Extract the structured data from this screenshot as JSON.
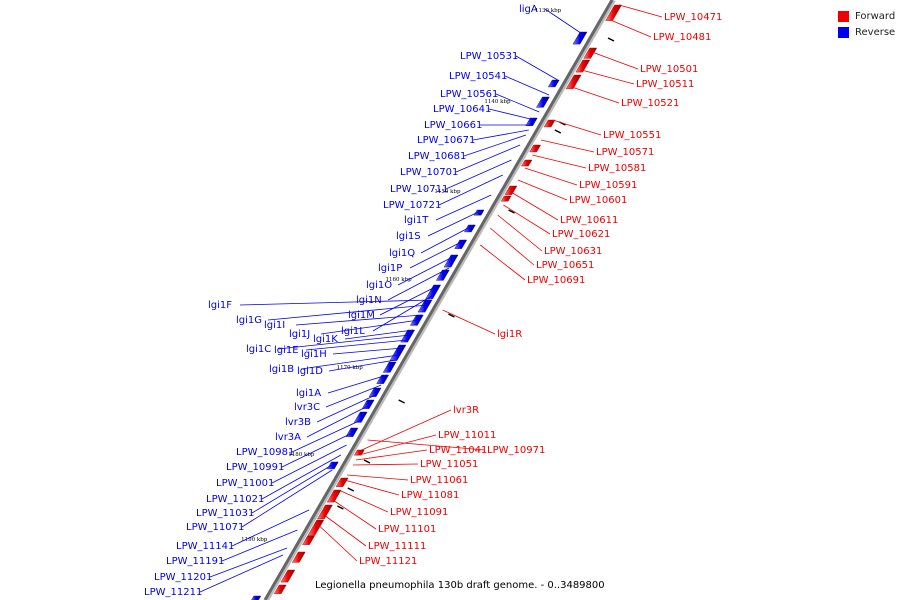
{
  "legend": {
    "forward": {
      "label": "Forward",
      "color": "#ee0000"
    },
    "reverse": {
      "label": "Reverse",
      "color": "#0000ee"
    }
  },
  "caption": "Legionella pneumophila 130b draft genome. - 0..3489800",
  "ticks": [
    "1130 kbp",
    "1140 kbp",
    "1150 kbp",
    "1160 kbp",
    "1170 kbp",
    "1180 kbp",
    "1190 kbp"
  ],
  "genes": [
    {
      "name": "ligA",
      "strand": "reverse"
    },
    {
      "name": "LPW_10471",
      "strand": "forward"
    },
    {
      "name": "LPW_10481",
      "strand": "forward"
    },
    {
      "name": "LPW_10501",
      "strand": "forward"
    },
    {
      "name": "LPW_10511",
      "strand": "forward"
    },
    {
      "name": "LPW_10521",
      "strand": "forward"
    },
    {
      "name": "LPW_10531",
      "strand": "reverse"
    },
    {
      "name": "LPW_10541",
      "strand": "reverse"
    },
    {
      "name": "LPW_10561",
      "strand": "reverse"
    },
    {
      "name": "LPW_10641",
      "strand": "reverse"
    },
    {
      "name": "LPW_10551",
      "strand": "forward"
    },
    {
      "name": "LPW_10661",
      "strand": "reverse"
    },
    {
      "name": "LPW_10671",
      "strand": "reverse"
    },
    {
      "name": "LPW_10571",
      "strand": "forward"
    },
    {
      "name": "LPW_10681",
      "strand": "reverse"
    },
    {
      "name": "LPW_10581",
      "strand": "forward"
    },
    {
      "name": "LPW_10701",
      "strand": "reverse"
    },
    {
      "name": "LPW_10591",
      "strand": "forward"
    },
    {
      "name": "LPW_10711",
      "strand": "reverse"
    },
    {
      "name": "LPW_10601",
      "strand": "forward"
    },
    {
      "name": "LPW_10721",
      "strand": "reverse"
    },
    {
      "name": "LPW_10611",
      "strand": "forward"
    },
    {
      "name": "lgi1T",
      "strand": "reverse"
    },
    {
      "name": "LPW_10621",
      "strand": "forward"
    },
    {
      "name": "lgi1S",
      "strand": "reverse"
    },
    {
      "name": "LPW_10631",
      "strand": "forward"
    },
    {
      "name": "lgi1Q",
      "strand": "reverse"
    },
    {
      "name": "LPW_10651",
      "strand": "forward"
    },
    {
      "name": "lgi1P",
      "strand": "reverse"
    },
    {
      "name": "LPW_10691",
      "strand": "forward"
    },
    {
      "name": "lgi1O",
      "strand": "reverse"
    },
    {
      "name": "lgi1N",
      "strand": "reverse"
    },
    {
      "name": "lgi1F",
      "strand": "reverse"
    },
    {
      "name": "lgi1M",
      "strand": "reverse"
    },
    {
      "name": "lgi1G",
      "strand": "reverse"
    },
    {
      "name": "lgi1I",
      "strand": "reverse"
    },
    {
      "name": "lgi1R",
      "strand": "forward"
    },
    {
      "name": "lgi1L",
      "strand": "reverse"
    },
    {
      "name": "lgi1J",
      "strand": "reverse"
    },
    {
      "name": "lgi1K",
      "strand": "reverse"
    },
    {
      "name": "lgi1C",
      "strand": "reverse"
    },
    {
      "name": "lgi1E",
      "strand": "reverse"
    },
    {
      "name": "lgi1H",
      "strand": "reverse"
    },
    {
      "name": "lgi1B",
      "strand": "reverse"
    },
    {
      "name": "lgi1D",
      "strand": "reverse"
    },
    {
      "name": "lgi1A",
      "strand": "reverse"
    },
    {
      "name": "lvr3C",
      "strand": "reverse"
    },
    {
      "name": "lvr3R",
      "strand": "forward"
    },
    {
      "name": "lvr3B",
      "strand": "reverse"
    },
    {
      "name": "LPW_11011",
      "strand": "forward"
    },
    {
      "name": "lvr3A",
      "strand": "reverse"
    },
    {
      "name": "LPW_11041",
      "strand": "forward"
    },
    {
      "name": "LPW_10971",
      "strand": "forward"
    },
    {
      "name": "LPW_10981",
      "strand": "reverse"
    },
    {
      "name": "LPW_11051",
      "strand": "forward"
    },
    {
      "name": "LPW_10991",
      "strand": "reverse"
    },
    {
      "name": "LPW_11061",
      "strand": "forward"
    },
    {
      "name": "LPW_11001",
      "strand": "reverse"
    },
    {
      "name": "LPW_11081",
      "strand": "forward"
    },
    {
      "name": "LPW_11021",
      "strand": "reverse"
    },
    {
      "name": "LPW_11031",
      "strand": "reverse"
    },
    {
      "name": "LPW_11091",
      "strand": "forward"
    },
    {
      "name": "LPW_11071",
      "strand": "reverse"
    },
    {
      "name": "LPW_11101",
      "strand": "forward"
    },
    {
      "name": "LPW_11141",
      "strand": "reverse"
    },
    {
      "name": "LPW_11111",
      "strand": "forward"
    },
    {
      "name": "LPW_11191",
      "strand": "reverse"
    },
    {
      "name": "LPW_11121",
      "strand": "forward"
    },
    {
      "name": "LPW_11201",
      "strand": "reverse"
    },
    {
      "name": "LPW_11211",
      "strand": "reverse"
    }
  ]
}
